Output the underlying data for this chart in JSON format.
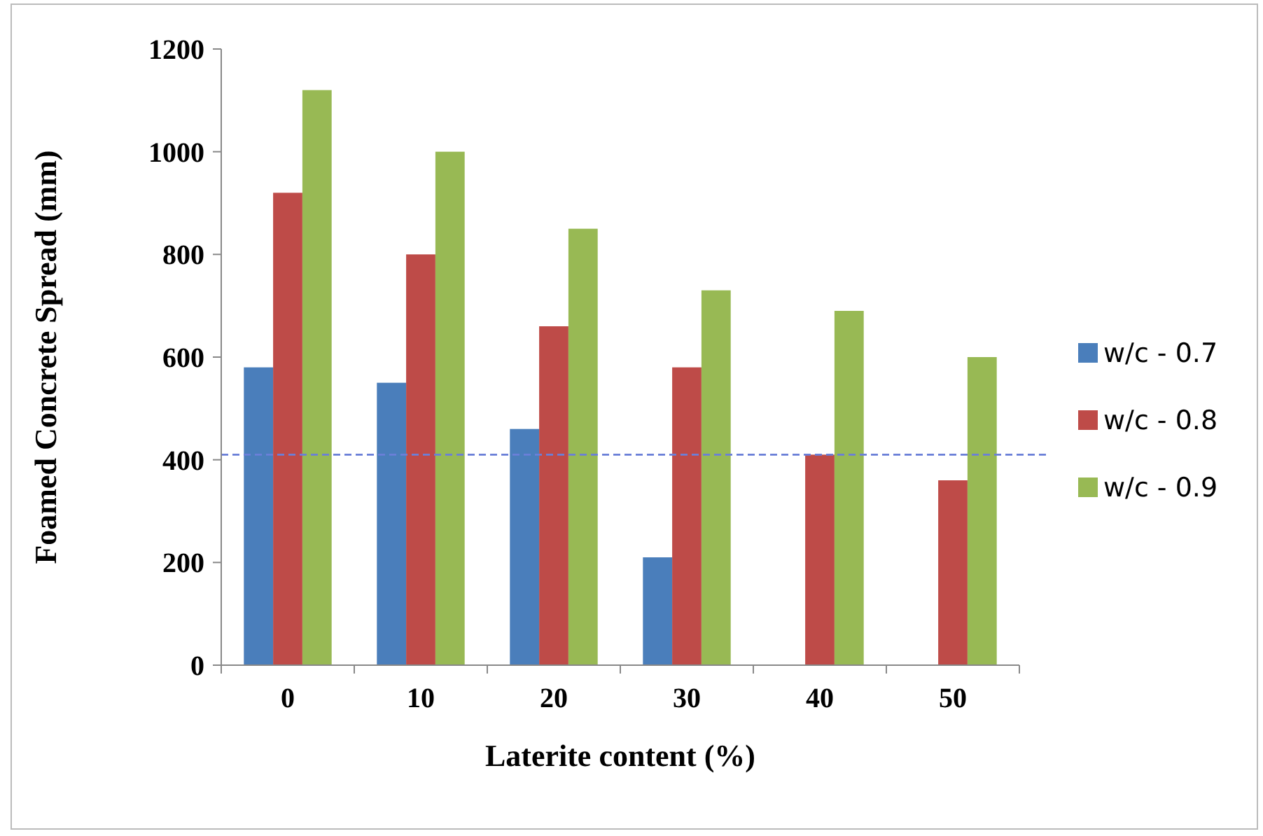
{
  "chart_data": {
    "type": "bar",
    "xlabel": "Laterite content (%)",
    "ylabel": "Foamed Concrete Spread (mm)",
    "categories": [
      "0",
      "10",
      "20",
      "30",
      "40",
      "50"
    ],
    "series": [
      {
        "name": "w/c - 0.7",
        "color": "#4a7ebb",
        "values": [
          580,
          550,
          460,
          210,
          null,
          null
        ]
      },
      {
        "name": "w/c - 0.8",
        "color": "#be4b48",
        "values": [
          920,
          800,
          660,
          580,
          410,
          360
        ]
      },
      {
        "name": "w/c - 0.9",
        "color": "#98b954",
        "values": [
          1120,
          1000,
          850,
          730,
          690,
          600
        ]
      }
    ],
    "ylim": [
      0,
      1200
    ],
    "yticks": [
      0,
      200,
      400,
      600,
      800,
      1000,
      1200
    ],
    "ref_lines": [
      {
        "axis": "y",
        "value": 410,
        "color": "#6a7fd8",
        "line_style": "dashed"
      }
    ],
    "legend": "right",
    "grid": false
  }
}
